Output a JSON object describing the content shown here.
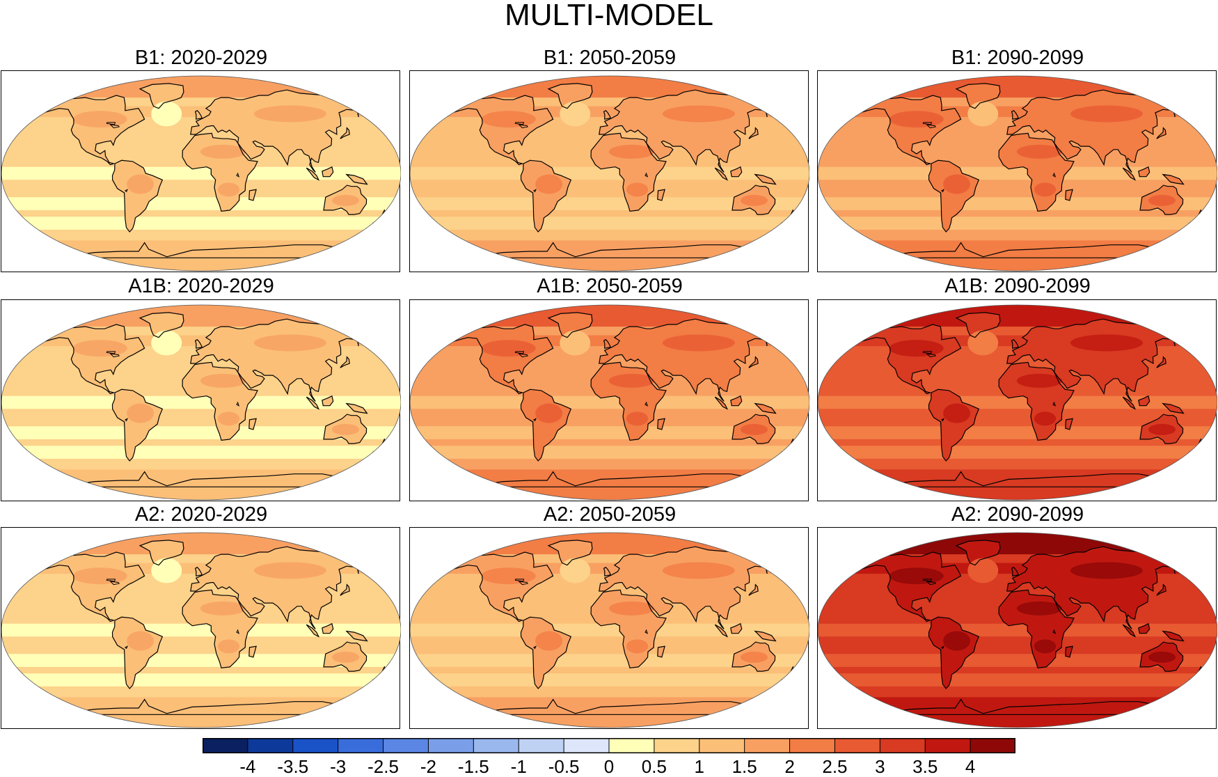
{
  "title": "MULTI-MODEL",
  "panels": [
    {
      "label": "B1: 2020-2029",
      "level": 1
    },
    {
      "label": "B1: 2050-2059",
      "level": 2
    },
    {
      "label": "B1: 2090-2099",
      "level": 3
    },
    {
      "label": "A1B: 2020-2029",
      "level": 1
    },
    {
      "label": "A1B: 2050-2059",
      "level": 3
    },
    {
      "label": "A1B: 2090-2099",
      "level": 5
    },
    {
      "label": "A2: 2020-2029",
      "level": 1
    },
    {
      "label": "A2: 2050-2059",
      "level": 2
    },
    {
      "label": "A2: 2090-2099",
      "level": 6
    }
  ],
  "colorbar": {
    "ticks": [
      "-4",
      "-3.5",
      "-3",
      "-2.5",
      "-2",
      "-1.5",
      "-1",
      "-0.5",
      "0",
      "0.5",
      "1",
      "1.5",
      "2",
      "2.5",
      "3",
      "3.5",
      "4"
    ],
    "colors": [
      "#0a2060",
      "#0d3a9a",
      "#1a52c8",
      "#3a6ddc",
      "#5b86e4",
      "#7a9ee8",
      "#9ab8ee",
      "#bfd2f4",
      "#dde6fa",
      "#ffffb8",
      "#fdd28a",
      "#fbbf78",
      "#f8a062",
      "#f27d45",
      "#e85a32",
      "#d83a22",
      "#c01810",
      "#8e0808"
    ]
  }
}
